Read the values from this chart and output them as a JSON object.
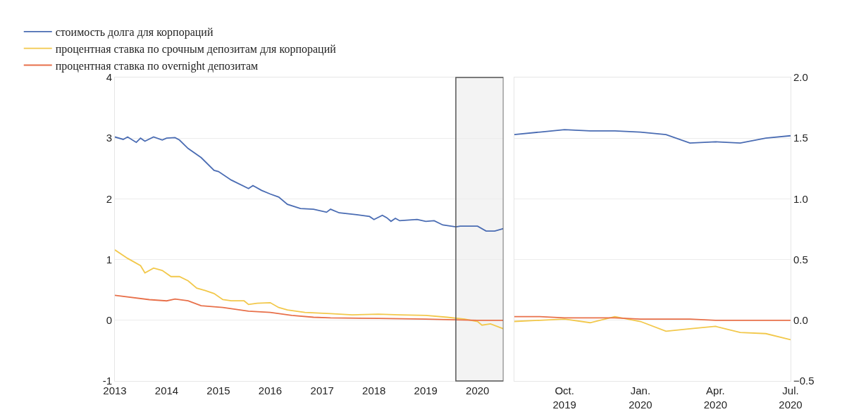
{
  "chart_data": [
    {
      "type": "line",
      "legend": "top left",
      "grid": "y",
      "xlim": [
        "2013-01-01",
        "2020-07-01"
      ],
      "ylim": [
        -1,
        4
      ],
      "yticks": [
        -1,
        0,
        1,
        2,
        3,
        4
      ],
      "xticks": [
        {
          "value": "2013-01-01",
          "label": "2013"
        },
        {
          "value": "2014-01-01",
          "label": "2014"
        },
        {
          "value": "2015-01-01",
          "label": "2015"
        },
        {
          "value": "2016-01-01",
          "label": "2016"
        },
        {
          "value": "2017-01-01",
          "label": "2017"
        },
        {
          "value": "2018-01-01",
          "label": "2018"
        },
        {
          "value": "2019-01-01",
          "label": "2019"
        },
        {
          "value": "2020-01-01",
          "label": "2020"
        }
      ],
      "bands": [
        {
          "axis": "x",
          "from": "2019-08-01",
          "to": "2020-07-01",
          "color": "#555555"
        }
      ],
      "series": [
        {
          "name": "стоимость долга для корпораций",
          "color": "#4a6cb3",
          "x": [
            "2013-01",
            "2013-03",
            "2013-04",
            "2013-06",
            "2013-07",
            "2013-08",
            "2013-10",
            "2013-12",
            "2014-01",
            "2014-03",
            "2014-04",
            "2014-06",
            "2014-09",
            "2014-12",
            "2015-01",
            "2015-04",
            "2015-08",
            "2015-09",
            "2015-11",
            "2016-01",
            "2016-03",
            "2016-05",
            "2016-08",
            "2016-11",
            "2017-02",
            "2017-03",
            "2017-05",
            "2017-09",
            "2017-12",
            "2018-01",
            "2018-03",
            "2018-04",
            "2018-05",
            "2018-06",
            "2018-07",
            "2018-11",
            "2019-01",
            "2019-03",
            "2019-05",
            "2019-08",
            "2019-09",
            "2020-01",
            "2020-03",
            "2020-05",
            "2020-07"
          ],
          "values": [
            3.02,
            2.98,
            3.02,
            2.93,
            3.0,
            2.95,
            3.02,
            2.97,
            3.0,
            3.01,
            2.97,
            2.83,
            2.68,
            2.47,
            2.45,
            2.31,
            2.17,
            2.22,
            2.14,
            2.08,
            2.03,
            1.91,
            1.84,
            1.83,
            1.78,
            1.83,
            1.77,
            1.74,
            1.71,
            1.66,
            1.73,
            1.69,
            1.63,
            1.68,
            1.64,
            1.66,
            1.63,
            1.64,
            1.57,
            1.54,
            1.55,
            1.55,
            1.47,
            1.47,
            1.51
          ]
        },
        {
          "name": "процентная ставка по срочным депозитам для корпораций",
          "color": "#f2c84b",
          "x": [
            "2013-01",
            "2013-04",
            "2013-07",
            "2013-08",
            "2013-10",
            "2013-12",
            "2014-02",
            "2014-04",
            "2014-06",
            "2014-08",
            "2014-10",
            "2014-12",
            "2015-02",
            "2015-04",
            "2015-07",
            "2015-08",
            "2015-10",
            "2016-01",
            "2016-03",
            "2016-05",
            "2016-09",
            "2017-03",
            "2017-08",
            "2018-02",
            "2018-07",
            "2019-01",
            "2019-06",
            "2019-10",
            "2020-01",
            "2020-02",
            "2020-04",
            "2020-07"
          ],
          "values": [
            1.16,
            1.02,
            0.9,
            0.78,
            0.86,
            0.82,
            0.72,
            0.72,
            0.65,
            0.53,
            0.49,
            0.44,
            0.34,
            0.32,
            0.32,
            0.26,
            0.28,
            0.29,
            0.21,
            0.17,
            0.13,
            0.11,
            0.09,
            0.1,
            0.09,
            0.08,
            0.05,
            0.02,
            -0.02,
            -0.08,
            -0.06,
            -0.14
          ]
        },
        {
          "name": "процентная ставка по overnight депозитам",
          "color": "#e8704a",
          "x": [
            "2013-01",
            "2013-09",
            "2014-01",
            "2014-03",
            "2014-06",
            "2014-09",
            "2015-02",
            "2015-08",
            "2016-01",
            "2016-06",
            "2016-11",
            "2017-03",
            "2018-02",
            "2019-01",
            "2019-06",
            "2020-01",
            "2020-07"
          ],
          "values": [
            0.41,
            0.34,
            0.32,
            0.35,
            0.32,
            0.24,
            0.21,
            0.15,
            0.13,
            0.08,
            0.05,
            0.04,
            0.03,
            0.02,
            0.01,
            0.0,
            0.0
          ]
        }
      ]
    },
    {
      "type": "line",
      "grid": "y",
      "xlim": [
        "2019-08-01",
        "2020-07-01"
      ],
      "ylim": [
        -0.5,
        2.0
      ],
      "yticks": [
        {
          "value": -0.5,
          "label": "−0.5"
        },
        {
          "value": 0,
          "label": "0.0"
        },
        {
          "value": 0.5,
          "label": "0.5"
        },
        {
          "value": 1,
          "label": "1.0"
        },
        {
          "value": 1.5,
          "label": "1.5"
        },
        {
          "value": 2,
          "label": "2.0"
        }
      ],
      "xticks": [
        {
          "value": "2019-10-01",
          "label": "Oct.\n2019"
        },
        {
          "value": "2020-01-01",
          "label": "Jan.\n2020"
        },
        {
          "value": "2020-04-01",
          "label": "Apr.\n2020"
        },
        {
          "value": "2020-07-01",
          "label": "Jul.\n2020"
        }
      ],
      "x": [
        "2019-08-01",
        "2019-09-01",
        "2019-10-01",
        "2019-11-01",
        "2019-12-01",
        "2020-01-01",
        "2020-02-01",
        "2020-03-01",
        "2020-04-01",
        "2020-05-01",
        "2020-06-01",
        "2020-07-01"
      ],
      "series": [
        {
          "color": "#4a6cb3",
          "values": [
            1.53,
            1.55,
            1.57,
            1.56,
            1.56,
            1.55,
            1.53,
            1.46,
            1.47,
            1.46,
            1.5,
            1.52
          ]
        },
        {
          "color": "#f2c84b",
          "values": [
            -0.01,
            0.0,
            0.01,
            -0.02,
            0.03,
            -0.01,
            -0.09,
            -0.07,
            -0.05,
            -0.1,
            -0.11,
            -0.16
          ]
        },
        {
          "color": "#e8704a",
          "values": [
            0.03,
            0.03,
            0.02,
            0.02,
            0.02,
            0.01,
            0.01,
            0.01,
            0.0,
            0.0,
            0.0,
            0.0
          ]
        }
      ]
    }
  ]
}
